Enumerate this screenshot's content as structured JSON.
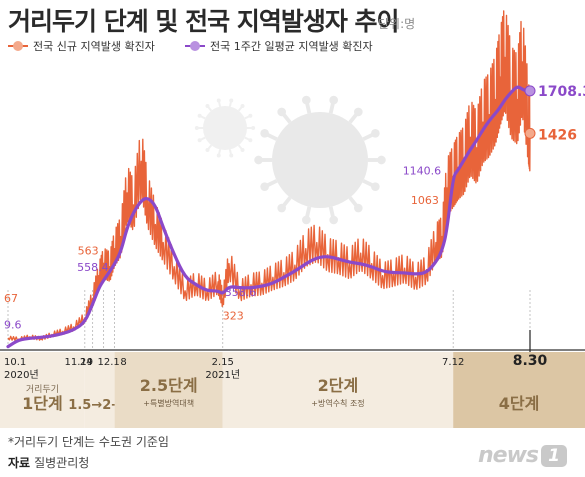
{
  "title": "거리두기 단계 및 전국 지역발생자 추이",
  "unit": "단위:명",
  "legend": {
    "daily": "전국 신규 지역발생 확진자",
    "weekly": "전국 1주간 일평균 지역발생 확진자"
  },
  "colors": {
    "daily": "#e8643a",
    "weekly": "#8b49c9",
    "axis": "#333333",
    "stage_light": "#f4ece0",
    "stage_mid": "#eadcc6",
    "stage_dark": "#dcc6a4",
    "stage_label": "#8a6e45"
  },
  "icons": [
    "coronavirus-icon"
  ],
  "note": "*거리두기 단계는 수도권 기준임",
  "source_label": "자료",
  "source": "질병관리청",
  "logo": {
    "text": "news",
    "badge": "1"
  },
  "chart_data": {
    "type": "line",
    "ylim": [
      0,
      1900
    ],
    "xlim": [
      "2020-10-01",
      "2021-08-30"
    ],
    "series": [
      {
        "name": "전국 신규 지역발생 확진자",
        "x": [
          "2020-10-01",
          "2020-10-08",
          "2020-10-15",
          "2020-10-22",
          "2020-10-29",
          "2020-11-05",
          "2020-11-12",
          "2020-11-19",
          "2020-11-24",
          "2020-11-28",
          "2020-12-01",
          "2020-12-05",
          "2020-12-08",
          "2020-12-12",
          "2020-12-16",
          "2020-12-20",
          "2020-12-25",
          "2020-12-29",
          "2021-01-03",
          "2021-01-08",
          "2021-01-15",
          "2021-01-22",
          "2021-01-29",
          "2021-02-05",
          "2021-02-12",
          "2021-02-15",
          "2021-02-19",
          "2021-02-26",
          "2021-03-05",
          "2021-03-12",
          "2021-03-19",
          "2021-03-26",
          "2021-04-02",
          "2021-04-09",
          "2021-04-16",
          "2021-04-23",
          "2021-04-30",
          "2021-05-07",
          "2021-05-14",
          "2021-05-21",
          "2021-05-28",
          "2021-06-04",
          "2021-06-11",
          "2021-06-18",
          "2021-06-25",
          "2021-07-01",
          "2021-07-05",
          "2021-07-08",
          "2021-07-12",
          "2021-07-15",
          "2021-07-19",
          "2021-07-23",
          "2021-07-27",
          "2021-07-31",
          "2021-08-04",
          "2021-08-08",
          "2021-08-11",
          "2021-08-14",
          "2021-08-18",
          "2021-08-22",
          "2021-08-25",
          "2021-08-29",
          "2021-08-30"
        ],
        "values": [
          67,
          60,
          75,
          62,
          90,
          110,
          140,
          200,
          330,
          480,
          563,
          540,
          660,
          740,
          1030,
          950,
          1240,
          980,
          820,
          700,
          540,
          380,
          430,
          380,
          440,
          323,
          560,
          380,
          420,
          430,
          470,
          500,
          550,
          660,
          700,
          620,
          600,
          560,
          630,
          560,
          480,
          500,
          530,
          470,
          520,
          700,
          740,
          1063,
          1140,
          1200,
          1250,
          1400,
          1330,
          1500,
          1550,
          1650,
          1800,
          1930,
          1700,
          1650,
          1900,
          1500,
          1426
        ]
      },
      {
        "name": "전국 1주간 일평균 지역발생 확진자",
        "x": [
          "2020-10-01",
          "2020-10-08",
          "2020-10-15",
          "2020-10-22",
          "2020-10-29",
          "2020-11-05",
          "2020-11-12",
          "2020-11-19",
          "2020-11-24",
          "2020-11-28",
          "2020-12-01",
          "2020-12-05",
          "2020-12-08",
          "2020-12-12",
          "2020-12-16",
          "2020-12-20",
          "2020-12-25",
          "2020-12-29",
          "2021-01-03",
          "2021-01-08",
          "2021-01-15",
          "2021-01-22",
          "2021-01-29",
          "2021-02-05",
          "2021-02-12",
          "2021-02-15",
          "2021-02-19",
          "2021-02-26",
          "2021-03-05",
          "2021-03-12",
          "2021-03-19",
          "2021-03-26",
          "2021-04-02",
          "2021-04-09",
          "2021-04-16",
          "2021-04-23",
          "2021-04-30",
          "2021-05-07",
          "2021-05-14",
          "2021-05-21",
          "2021-05-28",
          "2021-06-04",
          "2021-06-11",
          "2021-06-18",
          "2021-06-25",
          "2021-07-01",
          "2021-07-05",
          "2021-07-08",
          "2021-07-12",
          "2021-07-15",
          "2021-07-19",
          "2021-07-23",
          "2021-07-27",
          "2021-07-31",
          "2021-08-04",
          "2021-08-08",
          "2021-08-11",
          "2021-08-14",
          "2021-08-18",
          "2021-08-22",
          "2021-08-25",
          "2021-08-29",
          "2021-08-30"
        ],
        "values": [
          9.6,
          55,
          65,
          70,
          80,
          95,
          120,
          170,
          290,
          400,
          450,
          510,
          558.4,
          640,
          800,
          900,
          980,
          1000,
          950,
          800,
          620,
          470,
          420,
          380,
          380,
          358.6,
          410,
          400,
          400,
          410,
          430,
          470,
          510,
          560,
          600,
          610,
          590,
          570,
          560,
          540,
          510,
          500,
          500,
          490,
          500,
          570,
          650,
          780,
          1140.6,
          1180,
          1250,
          1320,
          1380,
          1450,
          1510,
          1560,
          1600,
          1650,
          1700,
          1740,
          1720,
          1700,
          1708.3
        ]
      }
    ],
    "annotations": [
      {
        "date": "2020-10-01",
        "value": "67",
        "series": "daily"
      },
      {
        "date": "2020-10-01",
        "value": "9.6",
        "series": "weekly"
      },
      {
        "date": "2020-12-01",
        "value": "563",
        "series": "daily"
      },
      {
        "date": "2020-12-08",
        "value": "558.4",
        "series": "weekly"
      },
      {
        "date": "2021-02-15",
        "value": "358.6",
        "series": "weekly"
      },
      {
        "date": "2021-02-15",
        "value": "323",
        "series": "daily"
      },
      {
        "date": "2021-07-12",
        "value": "1140.6",
        "series": "weekly"
      },
      {
        "date": "2021-07-08",
        "value": "1063",
        "series": "daily"
      },
      {
        "date": "2021-08-30",
        "value": "1708.3",
        "series": "weekly"
      },
      {
        "date": "2021-08-30",
        "value": "1426",
        "series": "daily"
      }
    ],
    "x_ticks": [
      {
        "date": "2020-10-01",
        "label": "10.1",
        "year": "2020년",
        "bold": false
      },
      {
        "date": "2020-11-19",
        "label": "11.19",
        "bold": false
      },
      {
        "date": "2020-11-24",
        "label": "24",
        "bold": false
      },
      {
        "date": "2020-12-01",
        "label": "12.1",
        "bold": false
      },
      {
        "date": "2020-12-08",
        "label": "8",
        "bold": false
      },
      {
        "date": "2021-02-15",
        "label": "2.15",
        "year": "2021년",
        "bold": false
      },
      {
        "date": "2021-07-12",
        "label": "7.12",
        "bold": false
      },
      {
        "date": "2021-08-30",
        "label": "8.30",
        "bold": true
      }
    ],
    "stages": [
      {
        "from": "2020-10-01",
        "to": "2020-11-19",
        "caption": "거리두기",
        "label": "1단계",
        "sub": "",
        "tone": "light"
      },
      {
        "from": "2020-11-19",
        "to": "2020-12-08",
        "caption": "",
        "label": "1.5→2→α",
        "sub": "",
        "tone": "light"
      },
      {
        "from": "2020-12-08",
        "to": "2021-02-15",
        "caption": "",
        "label": "2.5단계",
        "sub": "+특별방역대책",
        "tone": "mid"
      },
      {
        "from": "2021-02-15",
        "to": "2021-07-12",
        "caption": "",
        "label": "2단계",
        "sub": "+방역수칙 조정",
        "tone": "light"
      },
      {
        "from": "2021-07-12",
        "to": "2021-08-30",
        "caption": "",
        "label": "4단계",
        "sub": "",
        "tone": "dark"
      }
    ]
  }
}
